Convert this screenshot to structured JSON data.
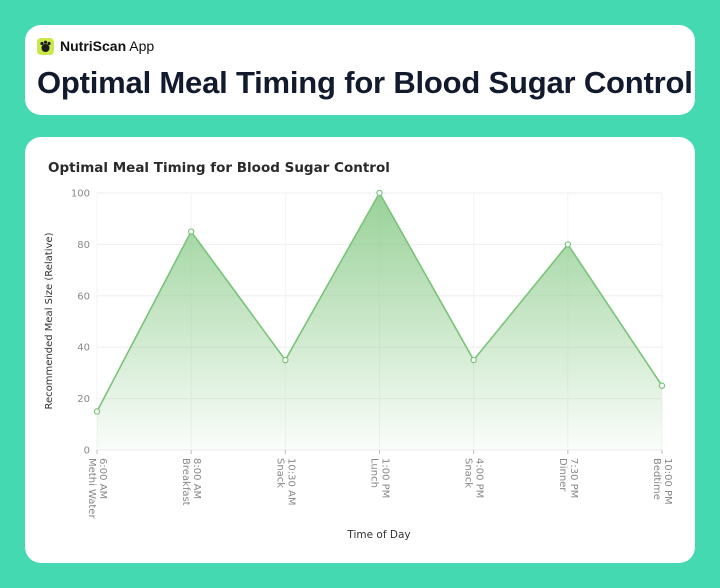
{
  "app": {
    "brand_bold": "NutriScan",
    "brand_rest": " App",
    "page_title": "Optimal Meal Timing for Blood Sugar Control"
  },
  "chart_data": {
    "type": "area",
    "title": "Optimal Meal Timing for Blood Sugar Control",
    "xlabel": "Time of Day",
    "ylabel": "Recommended Meal Size (Relative)",
    "categories": [
      [
        "6:00 AM",
        "Methi Water"
      ],
      [
        "8:00 AM",
        "Breakfast"
      ],
      [
        "10:30 AM",
        "Snack"
      ],
      [
        "1:00 PM",
        "Lunch"
      ],
      [
        "4:00 PM",
        "Snack"
      ],
      [
        "7:30 PM",
        "Dinner"
      ],
      [
        "10:00 PM",
        "Bedtime"
      ]
    ],
    "values": [
      15,
      85,
      35,
      100,
      35,
      80,
      25
    ],
    "ylim": [
      0,
      100
    ],
    "yticks": [
      0,
      20,
      40,
      60,
      80,
      100
    ],
    "grid": true,
    "colors": {
      "line": "#79c37a",
      "fill_top": "#86c985",
      "marker_face": "#ffffff",
      "page_bg": "#44d9b0"
    }
  }
}
